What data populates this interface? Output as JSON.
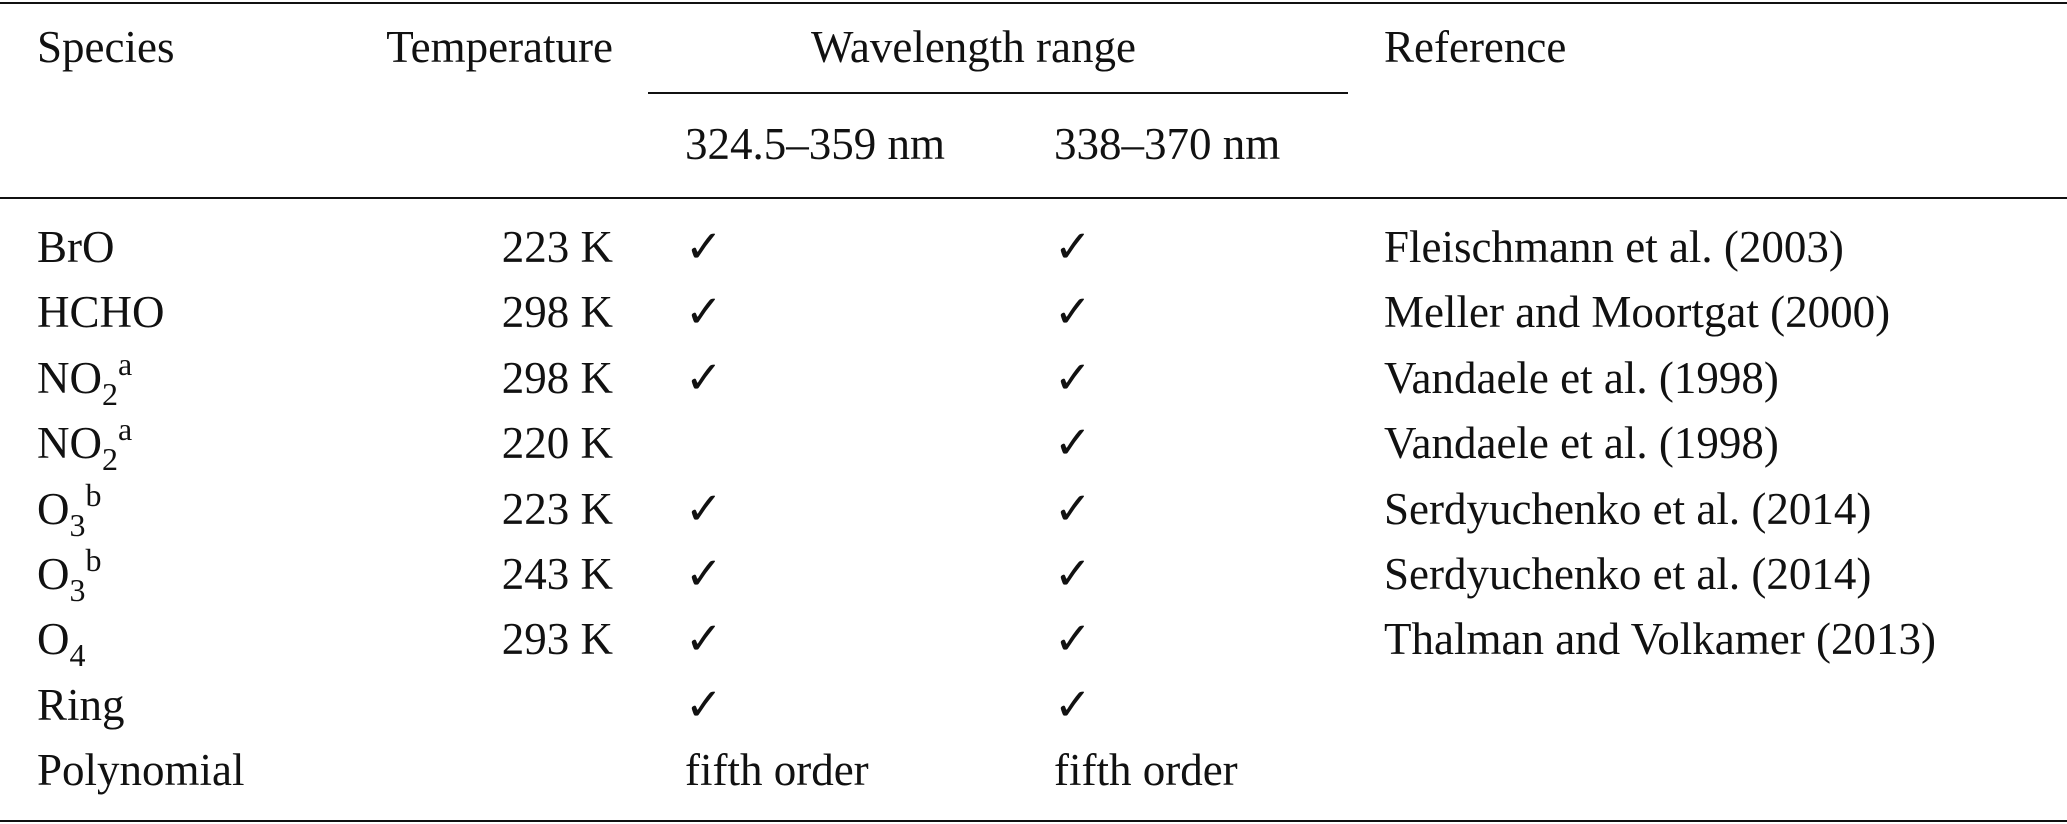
{
  "table": {
    "header": {
      "species": "Species",
      "temperature": "Temperature",
      "wavelength_range": "Wavelength range",
      "range_1": "324.5–359 nm",
      "range_2": "338–370 nm",
      "reference": "Reference"
    },
    "rows": [
      {
        "species": "BrO",
        "temperature": "223 K",
        "range_1": "✓",
        "range_2": "✓",
        "reference": "Fleischmann et al. (2003)"
      },
      {
        "species": "HCHO",
        "temperature": "298 K",
        "range_1": "✓",
        "range_2": "✓",
        "reference": "Meller and Moortgat (2000)"
      },
      {
        "species": {
          "base": "NO",
          "sub": "2",
          "sup": "a"
        },
        "temperature": "298 K",
        "range_1": "✓",
        "range_2": "✓",
        "reference": "Vandaele et al. (1998)"
      },
      {
        "species": {
          "base": "NO",
          "sub": "2",
          "sup": "a"
        },
        "temperature": "220 K",
        "range_1": null,
        "range_2": "✓",
        "reference": "Vandaele et al. (1998)"
      },
      {
        "species": {
          "base": "O",
          "sub": "3",
          "sup": "b"
        },
        "temperature": "223 K",
        "range_1": "✓",
        "range_2": "✓",
        "reference": "Serdyuchenko et al. (2014)"
      },
      {
        "species": {
          "base": "O",
          "sub": "3",
          "sup": "b"
        },
        "temperature": "243 K",
        "range_1": "✓",
        "range_2": "✓",
        "reference": "Serdyuchenko et al. (2014)"
      },
      {
        "species": {
          "base": "O",
          "sub": "4"
        },
        "temperature": "293 K",
        "range_1": "✓",
        "range_2": "✓",
        "reference": "Thalman and Volkamer (2013)"
      },
      {
        "species": "Ring",
        "temperature": null,
        "range_1": "✓",
        "range_2": "✓",
        "reference": null
      },
      {
        "species": "Polynomial",
        "temperature": null,
        "range_1": "fifth order",
        "range_2": "fifth order",
        "reference": null
      }
    ]
  }
}
